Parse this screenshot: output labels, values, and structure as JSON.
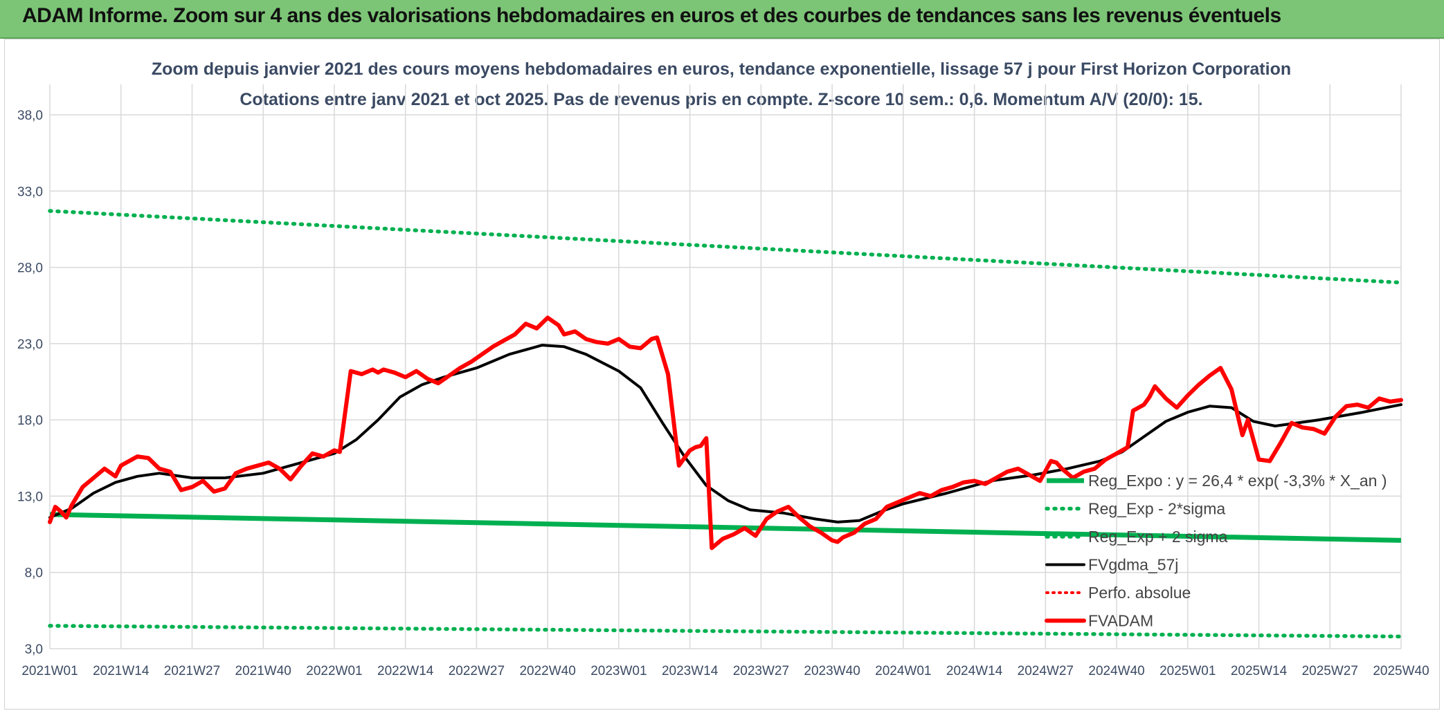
{
  "header": {
    "title": "ADAM Informe. Zoom sur 4 ans des valorisations hebdomadaires en euros et des courbes de tendances sans les revenus éventuels"
  },
  "chart_data": {
    "type": "line",
    "title_line1": "Zoom depuis janvier 2021 des cours moyens hebdomadaires en euros, tendance exponentielle, lissage 57 j pour First Horizon Corporation",
    "title_line2": "Cotations entre janv 2021 et oct 2025. Pas de revenus pris en compte. Z-score 10 sem.: 0,6. Momentum A/V (20/0): 15.",
    "ylim": [
      3,
      40
    ],
    "yticks": [
      "3,0",
      "8,0",
      "13,0",
      "18,0",
      "23,0",
      "28,0",
      "33,0",
      "38,0"
    ],
    "ytick_values": [
      3,
      8,
      13,
      18,
      23,
      28,
      33,
      38
    ],
    "xticks": [
      "2021W01",
      "2021W14",
      "2021W27",
      "2021W40",
      "2022W01",
      "2022W14",
      "2022W27",
      "2022W40",
      "2023W01",
      "2023W14",
      "2023W27",
      "2023W40",
      "2024W01",
      "2024W14",
      "2024W27",
      "2024W40",
      "2025W01",
      "2025W14",
      "2025W27",
      "2025W40"
    ],
    "xtick_index": [
      0,
      13,
      26,
      39,
      52,
      65,
      78,
      91,
      104,
      117,
      130,
      143,
      156,
      169,
      182,
      195,
      208,
      221,
      234,
      247
    ],
    "n_weeks": 248,
    "legend": [
      "Reg_Expo : y = 26,4 * exp( -3,3% *  X_an )",
      "Reg_Exp - 2*sigma",
      "Reg_Exp + 2 sigma",
      "FVgdma_57j",
      "Perfo. absolue",
      "FVADAM"
    ],
    "colors": {
      "reg": "#00b050",
      "smooth": "#000000",
      "perf": "#ff0000",
      "adam": "#ff0000",
      "grid": "#d9d9d9"
    },
    "series": [
      {
        "name": "Reg_Expo",
        "x": [
          0,
          247
        ],
        "values": [
          11.8,
          10.1
        ]
      },
      {
        "name": "Reg_Exp - 2*sigma",
        "x": [
          0,
          247
        ],
        "values": [
          4.5,
          3.8
        ]
      },
      {
        "name": "Reg_Exp + 2 sigma",
        "x": [
          0,
          247
        ],
        "values": [
          31.7,
          27.0
        ]
      },
      {
        "name": "FVgdma_57j",
        "x": [
          0,
          4,
          8,
          12,
          16,
          20,
          26,
          32,
          39,
          45,
          52,
          56,
          60,
          64,
          68,
          72,
          78,
          84,
          90,
          94,
          98,
          104,
          108,
          112,
          116,
          120,
          124,
          128,
          134,
          140,
          144,
          148,
          152,
          156,
          164,
          172,
          180,
          186,
          192,
          196,
          200,
          204,
          208,
          212,
          216,
          220,
          224,
          232,
          240,
          247
        ],
        "values": [
          11.6,
          12.2,
          13.2,
          13.9,
          14.3,
          14.5,
          14.2,
          14.2,
          14.5,
          15.1,
          15.8,
          16.7,
          18.0,
          19.5,
          20.3,
          20.8,
          21.4,
          22.3,
          22.9,
          22.8,
          22.3,
          21.2,
          20.1,
          17.8,
          15.6,
          13.7,
          12.7,
          12.1,
          11.9,
          11.5,
          11.3,
          11.4,
          12.0,
          12.5,
          13.2,
          14.0,
          14.4,
          14.8,
          15.3,
          15.9,
          16.9,
          17.9,
          18.5,
          18.9,
          18.8,
          17.9,
          17.6,
          18.0,
          18.5,
          19.0
        ]
      },
      {
        "name": "FVADAM",
        "x": [
          0,
          1,
          2,
          3,
          4,
          6,
          8,
          10,
          12,
          13,
          15,
          16,
          18,
          20,
          22,
          24,
          26,
          28,
          30,
          32,
          34,
          36,
          38,
          40,
          42,
          44,
          46,
          48,
          50,
          52,
          53,
          55,
          57,
          59,
          60,
          61,
          63,
          65,
          67,
          69,
          71,
          73,
          75,
          77,
          79,
          81,
          83,
          85,
          87,
          89,
          91,
          93,
          94,
          96,
          98,
          100,
          102,
          104,
          106,
          108,
          110,
          111,
          113,
          114,
          115,
          117,
          118,
          119,
          120,
          121,
          123,
          125,
          127,
          129,
          131,
          133,
          135,
          137,
          139,
          141,
          143,
          144,
          145,
          147,
          149,
          151,
          153,
          155,
          157,
          159,
          161,
          163,
          165,
          167,
          169,
          171,
          173,
          175,
          177,
          179,
          181,
          183,
          184,
          185,
          187,
          189,
          191,
          193,
          195,
          197,
          198,
          200,
          201,
          202,
          204,
          206,
          208,
          210,
          212,
          214,
          216,
          218,
          219,
          221,
          223,
          225,
          227,
          229,
          231,
          233,
          235,
          237,
          239,
          241,
          243,
          245,
          247
        ],
        "values": [
          11.3,
          12.3,
          12.0,
          11.6,
          12.4,
          13.6,
          14.2,
          14.8,
          14.3,
          15.0,
          15.4,
          15.6,
          15.5,
          14.8,
          14.6,
          13.4,
          13.6,
          14.0,
          13.3,
          13.5,
          14.5,
          14.8,
          15.0,
          15.2,
          14.8,
          14.1,
          15.0,
          15.8,
          15.6,
          16.0,
          15.9,
          21.2,
          21.0,
          21.3,
          21.1,
          21.3,
          21.1,
          20.8,
          21.2,
          20.7,
          20.4,
          20.9,
          21.4,
          21.8,
          22.3,
          22.8,
          23.2,
          23.6,
          24.3,
          24.0,
          24.7,
          24.2,
          23.6,
          23.8,
          23.3,
          23.1,
          23.0,
          23.3,
          22.8,
          22.7,
          23.3,
          23.4,
          21.0,
          18.0,
          15.0,
          16.0,
          16.2,
          16.3,
          16.8,
          9.6,
          10.2,
          10.5,
          10.9,
          10.4,
          11.5,
          12.0,
          12.3,
          11.6,
          11.0,
          10.6,
          10.1,
          10.0,
          10.3,
          10.6,
          11.2,
          11.5,
          12.3,
          12.6,
          12.9,
          13.2,
          13.0,
          13.4,
          13.6,
          13.9,
          14.0,
          13.8,
          14.2,
          14.6,
          14.8,
          14.4,
          14.0,
          15.3,
          15.2,
          14.8,
          14.2,
          14.6,
          14.8,
          15.4,
          15.8,
          16.2,
          18.6,
          19.0,
          19.5,
          20.2,
          19.4,
          18.8,
          19.6,
          20.3,
          20.9,
          21.4,
          20.0,
          17.0,
          18.0,
          15.4,
          15.3,
          16.5,
          17.8,
          17.5,
          17.4,
          17.1,
          18.2,
          18.9,
          19.0,
          18.8,
          19.4,
          19.2,
          19.3
        ]
      }
    ]
  }
}
